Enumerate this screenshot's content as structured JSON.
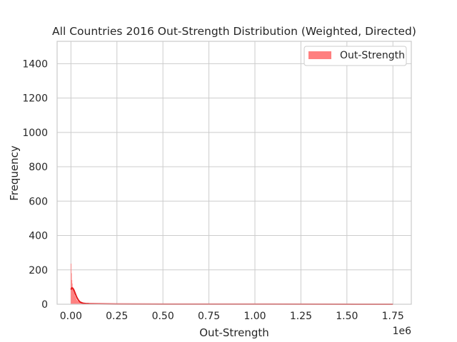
{
  "chart_data": {
    "type": "histogram",
    "title": "All Countries 2016 Out-Strength Distribution (Weighted, Directed)",
    "xlabel": "Out-Strength",
    "ylabel": "Frequency",
    "x_offset_label": "1e6",
    "x_multiplier": 1000000,
    "xlim": [
      -75000,
      1850000
    ],
    "ylim": [
      0,
      1530
    ],
    "x_ticks": [
      0,
      250000,
      500000,
      750000,
      1000000,
      1250000,
      1500000,
      1750000
    ],
    "x_tick_labels": [
      "0.00",
      "0.25",
      "0.50",
      "0.75",
      "1.00",
      "1.25",
      "1.50",
      "1.75"
    ],
    "y_ticks": [
      0,
      200,
      400,
      600,
      800,
      1000,
      1200,
      1400
    ],
    "y_tick_labels": [
      "0",
      "200",
      "400",
      "600",
      "800",
      "1000",
      "1200",
      "1400"
    ],
    "grid": true,
    "legend_position": "top-right",
    "series": [
      {
        "name": "Out-Strength",
        "color": "#ff7f7f",
        "kde_color": "#e31a1c",
        "bins": [
          {
            "x0": 0,
            "x1": 2000,
            "count": 235
          },
          {
            "x0": 2000,
            "x1": 4000,
            "count": 180
          },
          {
            "x0": 4000,
            "x1": 6000,
            "count": 140
          },
          {
            "x0": 6000,
            "x1": 8000,
            "count": 120
          },
          {
            "x0": 8000,
            "x1": 10000,
            "count": 100
          },
          {
            "x0": 10000,
            "x1": 12000,
            "count": 90
          },
          {
            "x0": 12000,
            "x1": 14000,
            "count": 80
          },
          {
            "x0": 14000,
            "x1": 16000,
            "count": 70
          },
          {
            "x0": 16000,
            "x1": 18000,
            "count": 65
          },
          {
            "x0": 18000,
            "x1": 20000,
            "count": 60
          },
          {
            "x0": 20000,
            "x1": 22000,
            "count": 50
          },
          {
            "x0": 22000,
            "x1": 24000,
            "count": 45
          },
          {
            "x0": 24000,
            "x1": 26000,
            "count": 40
          },
          {
            "x0": 26000,
            "x1": 28000,
            "count": 35
          },
          {
            "x0": 28000,
            "x1": 30000,
            "count": 30
          },
          {
            "x0": 30000,
            "x1": 32000,
            "count": 25
          },
          {
            "x0": 32000,
            "x1": 34000,
            "count": 22
          },
          {
            "x0": 34000,
            "x1": 36000,
            "count": 20
          },
          {
            "x0": 36000,
            "x1": 38000,
            "count": 18
          },
          {
            "x0": 38000,
            "x1": 40000,
            "count": 16
          },
          {
            "x0": 40000,
            "x1": 42000,
            "count": 14
          },
          {
            "x0": 42000,
            "x1": 44000,
            "count": 12
          },
          {
            "x0": 44000,
            "x1": 46000,
            "count": 11
          },
          {
            "x0": 46000,
            "x1": 48000,
            "count": 10
          },
          {
            "x0": 48000,
            "x1": 50000,
            "count": 9
          },
          {
            "x0": 50000,
            "x1": 55000,
            "count": 8
          },
          {
            "x0": 55000,
            "x1": 60000,
            "count": 7
          },
          {
            "x0": 60000,
            "x1": 65000,
            "count": 6
          },
          {
            "x0": 65000,
            "x1": 70000,
            "count": 5
          },
          {
            "x0": 70000,
            "x1": 80000,
            "count": 4
          },
          {
            "x0": 80000,
            "x1": 90000,
            "count": 3
          },
          {
            "x0": 90000,
            "x1": 100000,
            "count": 3
          },
          {
            "x0": 100000,
            "x1": 150000,
            "count": 2
          },
          {
            "x0": 150000,
            "x1": 250000,
            "count": 1
          }
        ],
        "kde": [
          {
            "x": 0,
            "y": 85
          },
          {
            "x": 5000,
            "y": 95
          },
          {
            "x": 10000,
            "y": 93
          },
          {
            "x": 15000,
            "y": 85
          },
          {
            "x": 20000,
            "y": 72
          },
          {
            "x": 25000,
            "y": 58
          },
          {
            "x": 30000,
            "y": 45
          },
          {
            "x": 35000,
            "y": 34
          },
          {
            "x": 40000,
            "y": 25
          },
          {
            "x": 45000,
            "y": 18
          },
          {
            "x": 50000,
            "y": 13
          },
          {
            "x": 60000,
            "y": 8
          },
          {
            "x": 70000,
            "y": 5
          },
          {
            "x": 80000,
            "y": 4
          },
          {
            "x": 100000,
            "y": 3
          },
          {
            "x": 150000,
            "y": 2
          },
          {
            "x": 250000,
            "y": 1
          },
          {
            "x": 500000,
            "y": 0.5
          },
          {
            "x": 1000000,
            "y": 0.3
          },
          {
            "x": 1750000,
            "y": 0.1
          }
        ]
      }
    ]
  }
}
